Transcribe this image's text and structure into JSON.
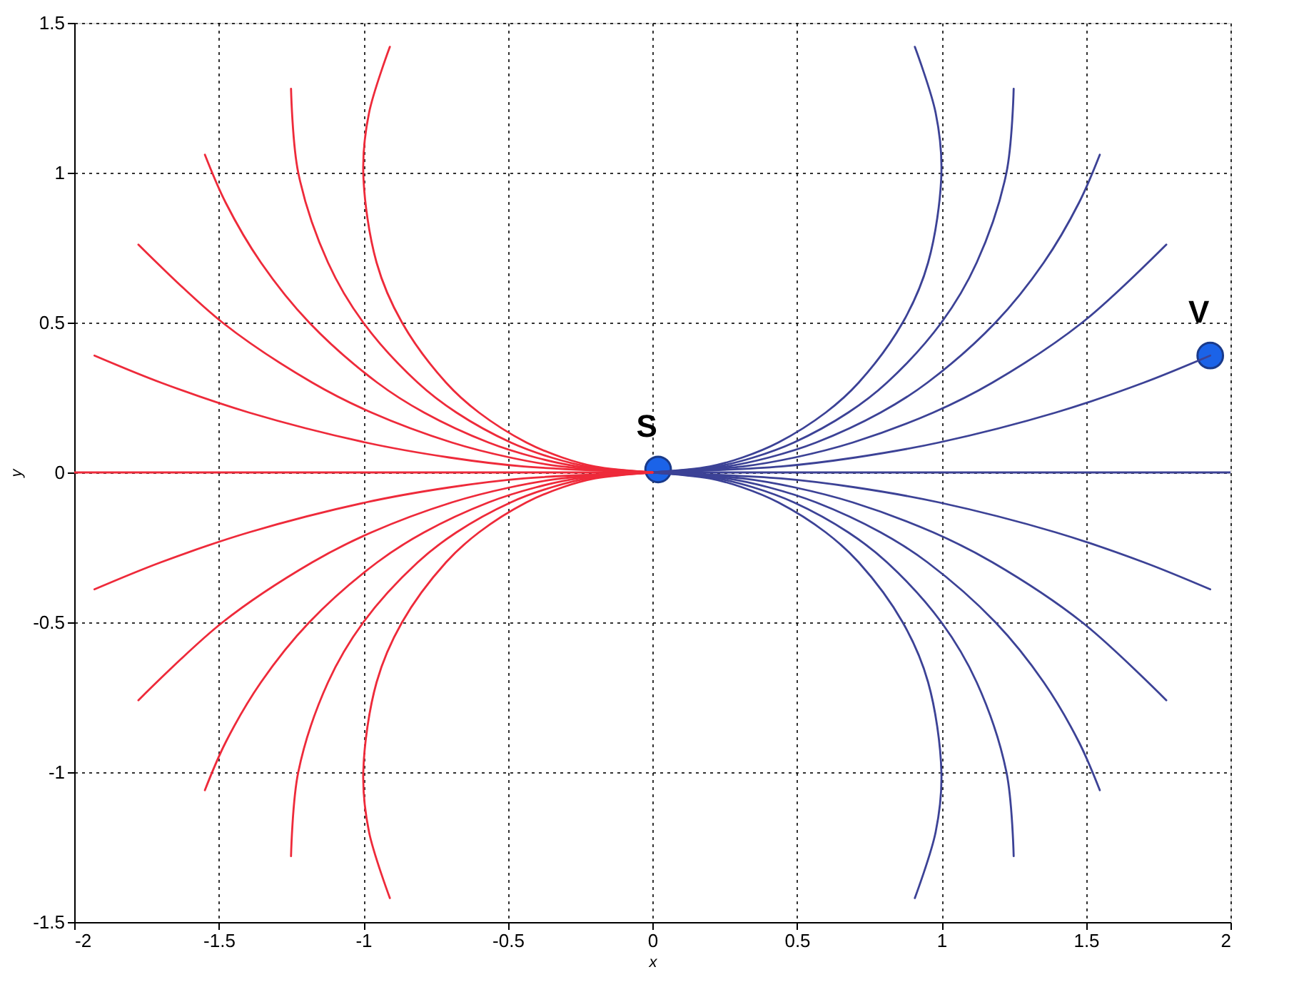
{
  "chart_data": {
    "type": "line",
    "xlabel": "x",
    "ylabel": "y",
    "xlim": [
      -2,
      2
    ],
    "ylim": [
      -1.5,
      1.5
    ],
    "xticks": [
      -2,
      -1.5,
      -1,
      -0.5,
      0,
      0.5,
      1,
      1.5,
      2
    ],
    "yticks": [
      -1.5,
      -1,
      -0.5,
      0,
      0.5,
      1,
      1.5
    ],
    "grid": true,
    "series": [
      {
        "color": "#3c4296",
        "x": [
          0,
          2
        ],
        "values": [
          0,
          0
        ]
      },
      {
        "color": "#3c4296",
        "x": [
          0,
          0.199,
          0.312,
          0.436,
          0.6,
          0.714,
          0.866,
          0.954,
          1,
          0.98,
          0.908
        ],
        "values": [
          0,
          0.02,
          0.05,
          0.1,
          0.2,
          0.3,
          0.5,
          0.7,
          1.0,
          1.2,
          1.42
        ]
      },
      {
        "color": "#3c4296",
        "x": [
          0,
          0.223,
          0.35,
          0.49,
          0.678,
          0.812,
          1.0,
          1.122,
          1.225,
          1.25
        ],
        "values": [
          0,
          0.02,
          0.05,
          0.1,
          0.2,
          0.3,
          0.5,
          0.7,
          1.0,
          1.28
        ]
      },
      {
        "color": "#3c4296",
        "x": [
          0,
          0.257,
          0.404,
          0.567,
          0.79,
          0.952,
          1.187,
          1.354,
          1.476,
          1.548
        ],
        "values": [
          0,
          0.02,
          0.05,
          0.1,
          0.2,
          0.3,
          0.5,
          0.7,
          0.9,
          1.06
        ]
      },
      {
        "color": "#3c4296",
        "x": [
          0,
          0.313,
          0.493,
          0.694,
          0.972,
          1.177,
          1.487,
          1.778
        ],
        "values": [
          0,
          0.02,
          0.05,
          0.1,
          0.2,
          0.3,
          0.5,
          0.76
        ]
      },
      {
        "color": "#3c4296",
        "x": [
          0,
          0.445,
          0.703,
          0.992,
          1.396,
          1.701,
          1.93
        ],
        "values": [
          0,
          0.02,
          0.05,
          0.1,
          0.2,
          0.3,
          0.39
        ]
      },
      {
        "color": "#3c4296",
        "x": [
          0,
          0.199,
          0.312,
          0.436,
          0.6,
          0.714,
          0.866,
          0.954,
          1,
          0.98,
          0.908
        ],
        "values": [
          0,
          -0.02,
          -0.05,
          -0.1,
          -0.2,
          -0.3,
          -0.5,
          -0.7,
          -1.0,
          -1.2,
          -1.42
        ]
      },
      {
        "color": "#3c4296",
        "x": [
          0,
          0.223,
          0.35,
          0.49,
          0.678,
          0.812,
          1.0,
          1.122,
          1.225,
          1.25
        ],
        "values": [
          0,
          -0.02,
          -0.05,
          -0.1,
          -0.2,
          -0.3,
          -0.5,
          -0.7,
          -1.0,
          -1.28
        ]
      },
      {
        "color": "#3c4296",
        "x": [
          0,
          0.257,
          0.404,
          0.567,
          0.79,
          0.952,
          1.187,
          1.354,
          1.476,
          1.548
        ],
        "values": [
          0,
          -0.02,
          -0.05,
          -0.1,
          -0.2,
          -0.3,
          -0.5,
          -0.7,
          -0.9,
          -1.06
        ]
      },
      {
        "color": "#3c4296",
        "x": [
          0,
          0.313,
          0.493,
          0.694,
          0.972,
          1.177,
          1.487,
          1.778
        ],
        "values": [
          0,
          -0.02,
          -0.05,
          -0.1,
          -0.2,
          -0.3,
          -0.5,
          -0.76
        ]
      },
      {
        "color": "#3c4296",
        "x": [
          0,
          0.445,
          0.703,
          0.992,
          1.396,
          1.701,
          1.93
        ],
        "values": [
          0,
          -0.02,
          -0.05,
          -0.1,
          -0.2,
          -0.3,
          -0.39
        ]
      },
      {
        "color": "#ee2a3a",
        "x": [
          0,
          -2
        ],
        "values": [
          0,
          0
        ]
      },
      {
        "color": "#ee2a3a",
        "x": [
          0,
          -0.199,
          -0.312,
          -0.436,
          -0.6,
          -0.714,
          -0.866,
          -0.954,
          -1,
          -0.98,
          -0.908
        ],
        "values": [
          0,
          0.02,
          0.05,
          0.1,
          0.2,
          0.3,
          0.5,
          0.7,
          1.0,
          1.2,
          1.42
        ]
      },
      {
        "color": "#ee2a3a",
        "x": [
          0,
          -0.223,
          -0.35,
          -0.49,
          -0.678,
          -0.812,
          -1.0,
          -1.122,
          -1.225,
          -1.25
        ],
        "values": [
          0,
          0.02,
          0.05,
          0.1,
          0.2,
          0.3,
          0.5,
          0.7,
          1.0,
          1.28
        ]
      },
      {
        "color": "#ee2a3a",
        "x": [
          0,
          -0.257,
          -0.404,
          -0.567,
          -0.79,
          -0.952,
          -1.187,
          -1.354,
          -1.476,
          -1.548
        ],
        "values": [
          0,
          0.02,
          0.05,
          0.1,
          0.2,
          0.3,
          0.5,
          0.7,
          0.9,
          1.06
        ]
      },
      {
        "color": "#ee2a3a",
        "x": [
          0,
          -0.313,
          -0.493,
          -0.694,
          -0.972,
          -1.177,
          -1.487,
          -1.778
        ],
        "values": [
          0,
          0.02,
          0.05,
          0.1,
          0.2,
          0.3,
          0.5,
          0.76
        ]
      },
      {
        "color": "#ee2a3a",
        "x": [
          0,
          -0.445,
          -0.703,
          -0.992,
          -1.396,
          -1.701,
          -1.93
        ],
        "values": [
          0,
          0.02,
          0.05,
          0.1,
          0.2,
          0.3,
          0.39
        ]
      },
      {
        "color": "#ee2a3a",
        "x": [
          0,
          -0.199,
          -0.312,
          -0.436,
          -0.6,
          -0.714,
          -0.866,
          -0.954,
          -1,
          -0.98,
          -0.908
        ],
        "values": [
          0,
          -0.02,
          -0.05,
          -0.1,
          -0.2,
          -0.3,
          -0.5,
          -0.7,
          -1.0,
          -1.2,
          -1.42
        ]
      },
      {
        "color": "#ee2a3a",
        "x": [
          0,
          -0.223,
          -0.35,
          -0.49,
          -0.678,
          -0.812,
          -1.0,
          -1.122,
          -1.225,
          -1.25
        ],
        "values": [
          0,
          -0.02,
          -0.05,
          -0.1,
          -0.2,
          -0.3,
          -0.5,
          -0.7,
          -1.0,
          -1.28
        ]
      },
      {
        "color": "#ee2a3a",
        "x": [
          0,
          -0.257,
          -0.404,
          -0.567,
          -0.79,
          -0.952,
          -1.187,
          -1.354,
          -1.476,
          -1.548
        ],
        "values": [
          0,
          -0.02,
          -0.05,
          -0.1,
          -0.2,
          -0.3,
          -0.5,
          -0.7,
          -0.9,
          -1.06
        ]
      },
      {
        "color": "#ee2a3a",
        "x": [
          0,
          -0.313,
          -0.493,
          -0.694,
          -0.972,
          -1.177,
          -1.487,
          -1.778
        ],
        "values": [
          0,
          -0.02,
          -0.05,
          -0.1,
          -0.2,
          -0.3,
          -0.5,
          -0.76
        ]
      },
      {
        "color": "#ee2a3a",
        "x": [
          0,
          -0.445,
          -0.703,
          -0.992,
          -1.396,
          -1.701,
          -1.93
        ],
        "values": [
          0,
          -0.02,
          -0.05,
          -0.1,
          -0.2,
          -0.3,
          -0.39
        ]
      },
      {
        "type": "scatter",
        "marker": "circle",
        "color": "#1b63e8",
        "x": [
          0.02,
          1.93
        ],
        "values": [
          0.01,
          0.39
        ]
      }
    ],
    "annotations": [
      {
        "text": "S",
        "x": 0.02,
        "y": 0.01
      },
      {
        "text": "V",
        "x": 1.93,
        "y": 0.39
      }
    ]
  }
}
